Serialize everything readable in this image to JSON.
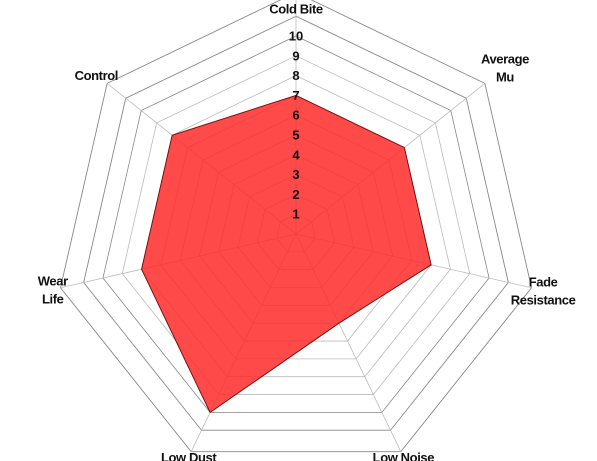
{
  "chart_data": {
    "type": "radar",
    "title": "",
    "axes": [
      "Cold Bite",
      "Average Mu",
      "Fade Resistance",
      "Low Noise",
      "Low Dust",
      "Wear Life",
      "Control"
    ],
    "axis_labels_display": [
      [
        "Cold Bite"
      ],
      [
        "Average",
        "Mu"
      ],
      [
        "Fade",
        "Resistance"
      ],
      [
        "Low Noise"
      ],
      [
        "Low Dust"
      ],
      [
        "Wear",
        "Life"
      ],
      [
        "Control"
      ]
    ],
    "ticks": [
      "1",
      "2",
      "3",
      "4",
      "5",
      "6",
      "7",
      "8",
      "9",
      "10"
    ],
    "range": [
      0,
      10
    ],
    "series": [
      {
        "values": [
          7,
          7,
          7,
          5,
          10,
          8,
          8
        ]
      }
    ],
    "colors": {
      "fill": "#ff2a2a",
      "stroke": "#7a1010",
      "grid_minor": "#bbbbbb",
      "grid_major": "#888888",
      "text": "#111111"
    }
  }
}
